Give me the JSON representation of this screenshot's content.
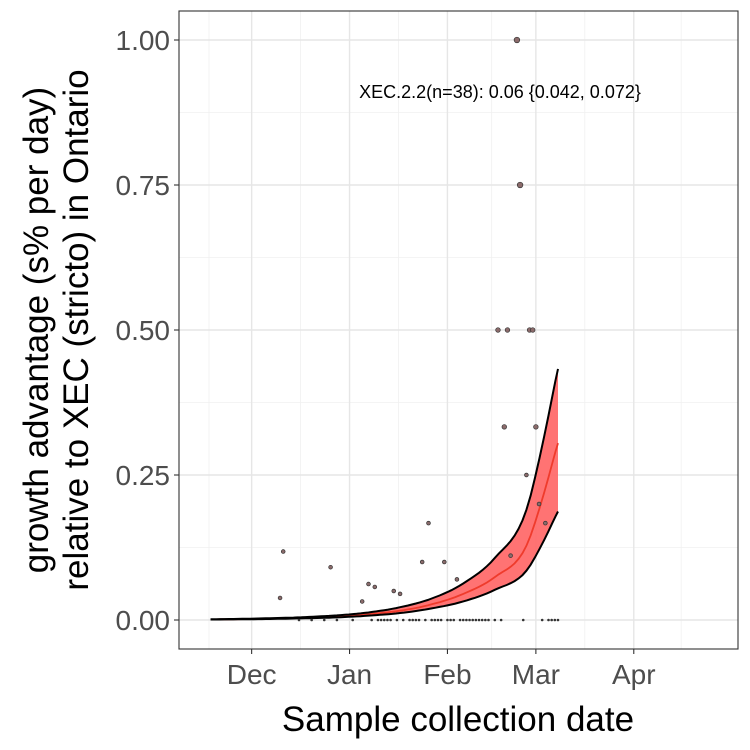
{
  "chart_data": {
    "type": "line",
    "title": "",
    "xlabel": "Sample collection date",
    "ylabel_line1": "growth advantage (s% per day)",
    "ylabel_line2": "relative to XEC (stricto) in Ontario",
    "annotation": "XEC.2.2(n=38): 0.06 {0.042, 0.072}",
    "x_ticks": [
      {
        "label": "Dec",
        "date": "2024-12-01"
      },
      {
        "label": "Jan",
        "date": "2025-01-01"
      },
      {
        "label": "Feb",
        "date": "2025-02-01"
      },
      {
        "label": "Mar",
        "date": "2025-03-01"
      },
      {
        "label": "Apr",
        "date": "2025-04-01"
      }
    ],
    "y_ticks": [
      {
        "label": "0.00",
        "value": 0.0
      },
      {
        "label": "0.25",
        "value": 0.25
      },
      {
        "label": "0.50",
        "value": 0.5
      },
      {
        "label": "0.75",
        "value": 0.75
      },
      {
        "label": "1.00",
        "value": 1.0
      }
    ],
    "xlim": [
      "2024-11-08",
      "2025-05-04"
    ],
    "ylim": [
      -0.05,
      1.05
    ],
    "grid": true,
    "colors": {
      "fit": "#ef3b2c",
      "ribbon": "#ff6b6b",
      "bound": "#000000",
      "points": "#8b6b6b"
    },
    "fit": {
      "x": [
        "2024-11-18",
        "2024-11-28",
        "2024-12-08",
        "2024-12-18",
        "2024-12-28",
        "2025-01-07",
        "2025-01-17",
        "2025-01-27",
        "2025-02-06",
        "2025-02-16",
        "2025-02-26",
        "2025-03-08"
      ],
      "y": [
        0.001,
        0.0015,
        0.0025,
        0.004,
        0.006,
        0.01,
        0.016,
        0.027,
        0.045,
        0.074,
        0.128,
        0.305
      ],
      "lower": [
        0.0008,
        0.0012,
        0.0019,
        0.003,
        0.0045,
        0.0075,
        0.012,
        0.02,
        0.032,
        0.052,
        0.085,
        0.187
      ],
      "upper": [
        0.0013,
        0.002,
        0.0032,
        0.005,
        0.008,
        0.013,
        0.022,
        0.037,
        0.063,
        0.107,
        0.19,
        0.433
      ]
    },
    "points": [
      {
        "x": "2024-12-10",
        "y": 0.038
      },
      {
        "x": "2024-12-11",
        "y": 0.118
      },
      {
        "x": "2024-12-26",
        "y": 0.091
      },
      {
        "x": "2025-01-05",
        "y": 0.032
      },
      {
        "x": "2025-01-07",
        "y": 0.062
      },
      {
        "x": "2025-01-09",
        "y": 0.057
      },
      {
        "x": "2025-01-15",
        "y": 0.05
      },
      {
        "x": "2025-01-17",
        "y": 0.045
      },
      {
        "x": "2025-01-24",
        "y": 0.1
      },
      {
        "x": "2025-01-26",
        "y": 0.167
      },
      {
        "x": "2025-01-31",
        "y": 0.1
      },
      {
        "x": "2025-02-04",
        "y": 0.07
      },
      {
        "x": "2025-02-17",
        "y": 0.5
      },
      {
        "x": "2025-02-19",
        "y": 0.333
      },
      {
        "x": "2025-02-20",
        "y": 0.5
      },
      {
        "x": "2025-02-21",
        "y": 0.111
      },
      {
        "x": "2025-02-23",
        "y": 1.0
      },
      {
        "x": "2025-02-24",
        "y": 0.75
      },
      {
        "x": "2025-02-26",
        "y": 0.25
      },
      {
        "x": "2025-02-27",
        "y": 0.5
      },
      {
        "x": "2025-02-28",
        "y": 0.5
      },
      {
        "x": "2025-03-01",
        "y": 0.333
      },
      {
        "x": "2025-03-02",
        "y": 0.2
      },
      {
        "x": "2025-03-04",
        "y": 0.167
      }
    ],
    "zero_points": [
      "2024-12-16",
      "2024-12-20",
      "2024-12-24",
      "2024-12-28",
      "2025-01-02",
      "2025-01-08",
      "2025-01-10",
      "2025-01-11",
      "2025-01-12",
      "2025-01-13",
      "2025-01-14",
      "2025-01-16",
      "2025-01-18",
      "2025-01-20",
      "2025-01-21",
      "2025-01-22",
      "2025-01-23",
      "2025-01-25",
      "2025-01-27",
      "2025-01-28",
      "2025-01-29",
      "2025-01-30",
      "2025-02-01",
      "2025-02-02",
      "2025-02-03",
      "2025-02-05",
      "2025-02-06",
      "2025-02-07",
      "2025-02-08",
      "2025-02-09",
      "2025-02-10",
      "2025-02-11",
      "2025-02-12",
      "2025-02-13",
      "2025-02-14",
      "2025-02-16",
      "2025-02-18",
      "2025-02-25",
      "2025-03-03",
      "2025-03-05",
      "2025-03-06",
      "2025-03-07",
      "2025-03-08"
    ]
  }
}
